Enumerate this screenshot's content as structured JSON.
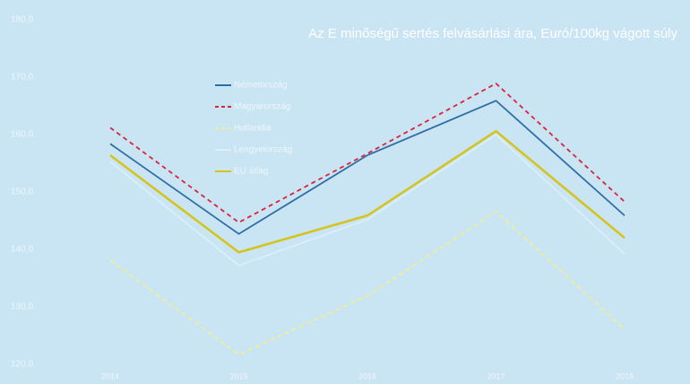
{
  "chart_data": {
    "type": "line",
    "title": "Az E minőségű sertés felvásárlási ára, Euró/100kg vágott súly",
    "categories": [
      "2014",
      "2015",
      "2016",
      "2017",
      "2018"
    ],
    "series": [
      {
        "name": "Németország",
        "color": "#2f6ea5",
        "dashed": false,
        "values": [
          158.4,
          142.7,
          156.4,
          165.9,
          145.9
        ]
      },
      {
        "name": "Magyarország",
        "color": "#d9253b",
        "dashed": true,
        "values": [
          161.2,
          144.7,
          156.7,
          168.9,
          148.3
        ]
      },
      {
        "name": "Hollandia",
        "color": "#f3ef8c",
        "dashed": true,
        "values": [
          138.1,
          121.7,
          131.9,
          146.6,
          126.1
        ]
      },
      {
        "name": "Lengyelország",
        "color": "#dbeff9",
        "dashed": false,
        "values": [
          155.3,
          137.2,
          145.2,
          160.0,
          139.2
        ]
      },
      {
        "name": "EU átlag",
        "color": "#d6c31a",
        "dashed": false,
        "values": [
          156.4,
          139.5,
          145.9,
          160.6,
          142.0
        ]
      }
    ],
    "ylim": [
      120,
      180
    ],
    "yticks": [
      {
        "value": 120,
        "label": "120,0"
      },
      {
        "value": 130,
        "label": "130,0"
      },
      {
        "value": 140,
        "label": "140,0"
      },
      {
        "value": 150,
        "label": "150,0"
      },
      {
        "value": 160,
        "label": "160,0"
      },
      {
        "value": 170,
        "label": "170,0"
      },
      {
        "value": 180,
        "label": "180,0"
      }
    ],
    "legend": "top-left"
  }
}
